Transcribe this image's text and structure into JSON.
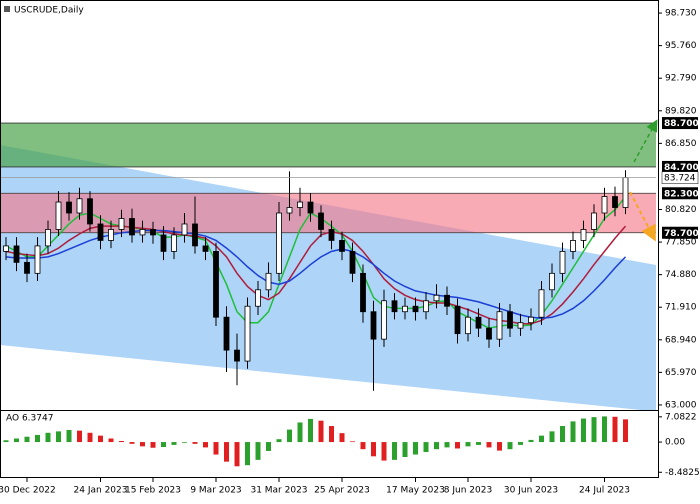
{
  "chart_data": [
    {
      "type": "candlestick",
      "title": "USCRUDE,Daily",
      "categories": [
        null,
        null,
        "30 Dec 2022",
        null,
        null,
        null,
        null,
        null,
        null,
        "24 Jan 2023",
        null,
        null,
        null,
        null,
        "15 Feb 2023",
        null,
        null,
        null,
        null,
        null,
        "9 Mar 2023",
        null,
        null,
        null,
        null,
        null,
        "31 Mar 2023",
        null,
        null,
        null,
        null,
        null,
        "25 Apr 2023",
        null,
        null,
        null,
        null,
        null,
        null,
        "17 May 2023",
        null,
        null,
        null,
        null,
        "8 Jun 2023",
        null,
        null,
        null,
        null,
        null,
        "30 Jun 2023",
        null,
        null,
        null,
        null,
        null,
        null,
        "24 Jul 2023",
        null,
        null
      ],
      "open": [
        77.0,
        77.5,
        76.0,
        75.0,
        77.5,
        79.0,
        81.5,
        80.5,
        81.8,
        79.5,
        78.0,
        79.0,
        80.0,
        78.5,
        79.0,
        78.5,
        77.0,
        78.5,
        79.5,
        77.5,
        77.0,
        71.0,
        68.0,
        67.0,
        72.0,
        73.5,
        75.0,
        80.5,
        81.0,
        81.5,
        80.5,
        79.0,
        78.0,
        77.0,
        75.0,
        71.5,
        69.0,
        72.5,
        71.5,
        72.0,
        71.5,
        72.5,
        73.0,
        72.0,
        69.5,
        71.0,
        70.0,
        69.0,
        71.5,
        70.0,
        70.5,
        71.0,
        73.5,
        75.0,
        77.0,
        78.0,
        79.0,
        80.5,
        82.0,
        81.0
      ],
      "high": [
        78.3,
        78.3,
        76.8,
        78.3,
        79.8,
        82.5,
        82.4,
        82.8,
        82.5,
        80.3,
        79.8,
        80.8,
        80.9,
        79.8,
        79.7,
        79.3,
        79.2,
        80.5,
        82.0,
        78.3,
        77.8,
        72.0,
        69.5,
        72.8,
        74.3,
        76.0,
        81.5,
        84.3,
        82.8,
        82.3,
        81.2,
        79.8,
        78.8,
        77.8,
        75.8,
        72.5,
        73.5,
        73.2,
        72.8,
        72.8,
        73.3,
        74.0,
        73.8,
        72.7,
        71.8,
        71.8,
        70.9,
        72.3,
        72.2,
        71.3,
        71.8,
        74.3,
        75.9,
        77.8,
        78.8,
        79.8,
        81.3,
        82.8,
        82.9,
        84.4
      ],
      "low": [
        76.2,
        75.2,
        74.2,
        74.3,
        76.8,
        78.4,
        79.8,
        79.9,
        78.8,
        77.2,
        77.3,
        78.3,
        77.8,
        77.8,
        77.7,
        76.2,
        76.3,
        77.8,
        76.8,
        76.2,
        70.2,
        66.0,
        64.8,
        66.3,
        71.2,
        72.8,
        74.3,
        79.8,
        80.2,
        79.7,
        78.3,
        77.2,
        76.2,
        74.2,
        70.5,
        64.3,
        68.3,
        70.8,
        70.8,
        70.7,
        70.8,
        71.8,
        71.2,
        68.6,
        68.8,
        69.2,
        68.2,
        68.3,
        69.2,
        69.3,
        69.8,
        70.3,
        72.8,
        74.2,
        76.3,
        77.3,
        78.3,
        79.8,
        80.2,
        80.4
      ],
      "close": [
        77.5,
        76.0,
        75.0,
        77.5,
        79.0,
        81.5,
        80.5,
        81.8,
        79.5,
        78.0,
        79.0,
        80.0,
        78.5,
        79.0,
        78.5,
        77.0,
        78.5,
        79.5,
        77.5,
        77.0,
        71.0,
        68.0,
        67.0,
        72.0,
        73.5,
        75.0,
        80.5,
        81.0,
        81.5,
        80.5,
        79.0,
        78.0,
        77.0,
        75.0,
        71.5,
        69.0,
        72.5,
        71.5,
        72.0,
        71.5,
        72.5,
        73.0,
        72.0,
        69.5,
        71.0,
        70.0,
        69.0,
        71.5,
        70.0,
        70.5,
        71.0,
        73.5,
        75.0,
        77.0,
        78.0,
        79.0,
        80.5,
        82.0,
        81.0,
        83.724
      ],
      "up_color": "#ffffff",
      "down_color": "#000000",
      "series": [
        {
          "color": "#1fbf3a",
          "values": [
            77.5,
            77.0,
            76.5,
            76.5,
            77.5,
            78.5,
            79.5,
            80.3,
            80.5,
            80.0,
            79.5,
            79.3,
            79.2,
            79.0,
            78.8,
            78.3,
            78.3,
            78.5,
            78.3,
            78.0,
            76.0,
            74.0,
            71.5,
            70.5,
            70.5,
            71.5,
            74.0,
            76.5,
            79.0,
            80.5,
            80.0,
            79.3,
            78.5,
            77.0,
            75.0,
            72.8,
            72.0,
            71.8,
            71.8,
            71.8,
            72.0,
            72.4,
            72.5,
            71.5,
            71.0,
            70.5,
            70.0,
            70.2,
            70.3,
            70.2,
            70.3,
            71.2,
            72.5,
            74.0,
            75.5,
            77.0,
            78.5,
            80.0,
            80.8,
            82.0
          ]
        },
        {
          "color": "#b01c3c",
          "values": [
            77.0,
            76.8,
            76.7,
            76.6,
            76.8,
            77.3,
            78.0,
            78.6,
            79.1,
            79.3,
            79.3,
            79.3,
            79.2,
            79.1,
            79.0,
            78.8,
            78.6,
            78.5,
            78.4,
            78.2,
            77.5,
            76.5,
            75.0,
            73.8,
            73.0,
            72.6,
            73.2,
            74.5,
            76.0,
            77.5,
            78.5,
            78.8,
            78.6,
            78.0,
            77.0,
            75.8,
            74.5,
            73.6,
            73.0,
            72.6,
            72.4,
            72.3,
            72.3,
            72.0,
            71.7,
            71.3,
            70.9,
            70.7,
            70.6,
            70.4,
            70.4,
            70.7,
            71.3,
            72.2,
            73.3,
            74.5,
            75.8,
            77.0,
            78.2,
            79.3
          ]
        },
        {
          "color": "#1c3fd6",
          "values": [
            76.5,
            76.4,
            76.4,
            76.4,
            76.5,
            76.8,
            77.2,
            77.6,
            78.0,
            78.3,
            78.5,
            78.7,
            78.8,
            78.9,
            78.9,
            78.9,
            78.8,
            78.7,
            78.6,
            78.4,
            78.0,
            77.3,
            76.5,
            75.6,
            74.8,
            74.2,
            74.0,
            74.3,
            75.0,
            75.8,
            76.5,
            77.0,
            77.2,
            77.0,
            76.5,
            75.8,
            75.0,
            74.3,
            73.8,
            73.4,
            73.2,
            73.0,
            72.9,
            72.8,
            72.6,
            72.4,
            72.1,
            71.8,
            71.5,
            71.2,
            71.0,
            70.9,
            71.0,
            71.3,
            71.8,
            72.5,
            73.4,
            74.4,
            75.5,
            76.5
          ]
        }
      ],
      "channel": {
        "upper": [
          86.7,
          75.76
        ],
        "lower": [
          68.47,
          62.4
        ],
        "color": "#aed4f7"
      },
      "zones": [
        {
          "low": {
            "value": 84.7,
            "label": "84.700"
          },
          "high": {
            "value": 88.7,
            "label": "88.700"
          },
          "color": "rgba(70,160,70,0.68)"
        },
        {
          "low": {
            "value": 78.7,
            "label": "78.700"
          },
          "high": {
            "value": 82.3,
            "label": "82.300"
          },
          "color": "rgba(245,120,135,0.62)"
        }
      ],
      "ylim": [
        62.54,
        99.92
      ],
      "yticks": [
        {
          "value": 98.73,
          "label": "98.730"
        },
        {
          "value": 95.76,
          "label": "95.760"
        },
        {
          "value": 92.79,
          "label": "92.790"
        },
        {
          "value": 89.82,
          "label": "89.820"
        },
        {
          "value": 86.85,
          "label": "86.850"
        },
        {
          "value": 80.82,
          "label": "80.820"
        },
        {
          "value": 77.85,
          "label": "77.850"
        },
        {
          "value": 74.88,
          "label": "74.880"
        },
        {
          "value": 71.91,
          "label": "71.910"
        },
        {
          "value": 68.94,
          "label": "68.940"
        },
        {
          "value": 65.97,
          "label": "65.970"
        },
        {
          "value": 63.0,
          "label": "63.000"
        }
      ]
    },
    {
      "type": "bar",
      "title": "AO 6.3747",
      "up_color": "#2ca02c",
      "down_color": "#e02020",
      "values": [
        0.5,
        1.0,
        1.5,
        2.0,
        2.6,
        3.0,
        3.4,
        3.2,
        2.6,
        1.8,
        1.0,
        0.3,
        -0.5,
        -1.2,
        -1.6,
        -1.4,
        -0.8,
        -0.2,
        -0.5,
        -1.5,
        -3.5,
        -5.5,
        -6.8,
        -6.5,
        -5.0,
        -2.5,
        0.8,
        3.5,
        5.5,
        6.5,
        6.0,
        4.5,
        2.5,
        0.2,
        -2.0,
        -4.0,
        -5.2,
        -5.0,
        -4.2,
        -3.5,
        -2.8,
        -2.0,
        -1.5,
        -1.8,
        -1.2,
        -0.8,
        -1.5,
        -2.4,
        -2.0,
        -0.8,
        0.6,
        1.8,
        3.0,
        4.5,
        5.8,
        6.6,
        7.0,
        7.2,
        7.1,
        6.3747
      ],
      "ylim": [
        -9.81,
        8.72
      ],
      "yticks": [
        7.0822,
        {
          "value": 0,
          "label": "0.00"
        },
        -8.4825
      ]
    }
  ]
}
